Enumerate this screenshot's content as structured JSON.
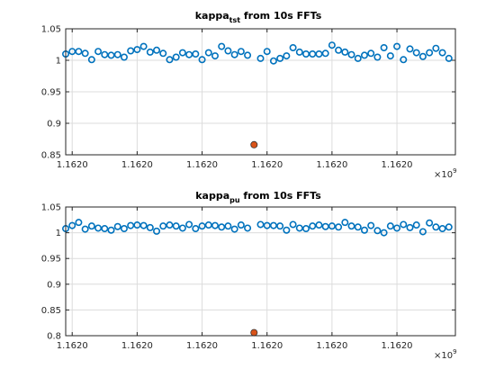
{
  "colors": {
    "series": "#0072BD",
    "outlier": "#D95319",
    "outlier_edge": "#333333"
  },
  "chart_data": [
    {
      "type": "scatter",
      "title": {
        "base": "kappa",
        "sub": "tst",
        "rest": " from 10s FFTs"
      },
      "ylim": [
        0.85,
        1.05
      ],
      "yticks": [
        0.85,
        0.9,
        0.95,
        1,
        1.05
      ],
      "ytick_labels": [
        "0.85",
        "0.9",
        "0.95",
        "1",
        "1.05"
      ],
      "xlim": [
        0,
        60
      ],
      "xticks": [
        1,
        11,
        21,
        31,
        41,
        51
      ],
      "xtick_labels": [
        "1.1620",
        "1.1620",
        "1.1620",
        "1.1620",
        "1.1620",
        "1.1620"
      ],
      "x_exponent": "×10",
      "x_exponent_power": "9",
      "grid": true,
      "series": [
        {
          "marker": "open-circle",
          "x": [
            0,
            1,
            2,
            3,
            4,
            5,
            6,
            7,
            8,
            9,
            10,
            11,
            12,
            13,
            14,
            15,
            16,
            17,
            18,
            19,
            20,
            21,
            22,
            23,
            24,
            25,
            26,
            27,
            28,
            29,
            30,
            31,
            32,
            33,
            34,
            35,
            36,
            37,
            38,
            39,
            40,
            41,
            42,
            43,
            44,
            45,
            46,
            47,
            48,
            49,
            50,
            51,
            52,
            53,
            54,
            55,
            56,
            57,
            58,
            59,
            60
          ],
          "y": [
            1.01,
            1.014,
            1.014,
            1.011,
            1.001,
            1.014,
            1.009,
            1.008,
            1.009,
            1.005,
            1.015,
            1.017,
            1.022,
            1.013,
            1.016,
            1.011,
            1.001,
            1.005,
            1.012,
            1.009,
            1.01,
            1.001,
            1.012,
            1.007,
            1.022,
            1.015,
            1.009,
            1.014,
            1.008,
            null,
            1.003,
            1.014,
            0.999,
            1.003,
            1.007,
            1.02,
            1.013,
            1.01,
            1.01,
            1.01,
            1.011,
            1.024,
            1.016,
            1.013,
            1.009,
            1.003,
            1.008,
            1.011,
            1.005,
            1.02,
            1.007,
            1.022,
            1.001,
            1.018,
            1.012,
            1.006,
            1.012,
            1.019,
            1.012,
            1.003,
            null
          ]
        },
        {
          "marker": "filled-circle",
          "x": [
            29
          ],
          "y": [
            0.866
          ]
        }
      ]
    },
    {
      "type": "scatter",
      "title": {
        "base": "kappa",
        "sub": "pu",
        "rest": " from 10s FFTs"
      },
      "ylim": [
        0.8,
        1.05
      ],
      "yticks": [
        0.8,
        0.85,
        0.9,
        0.95,
        1,
        1.05
      ],
      "ytick_labels": [
        "0.8",
        "0.85",
        "0.9",
        "0.95",
        "1",
        "1.05"
      ],
      "xlim": [
        0,
        60
      ],
      "xticks": [
        1,
        11,
        21,
        31,
        41,
        51
      ],
      "xtick_labels": [
        "1.1620",
        "1.1620",
        "1.1620",
        "1.1620",
        "1.1620",
        "1.1620"
      ],
      "x_exponent": "×10",
      "x_exponent_power": "9",
      "grid": true,
      "series": [
        {
          "marker": "open-circle",
          "x": [
            0,
            1,
            2,
            3,
            4,
            5,
            6,
            7,
            8,
            9,
            10,
            11,
            12,
            13,
            14,
            15,
            16,
            17,
            18,
            19,
            20,
            21,
            22,
            23,
            24,
            25,
            26,
            27,
            28,
            29,
            30,
            31,
            32,
            33,
            34,
            35,
            36,
            37,
            38,
            39,
            40,
            41,
            42,
            43,
            44,
            45,
            46,
            47,
            48,
            49,
            50,
            51,
            52,
            53,
            54,
            55,
            56,
            57,
            58,
            59,
            60
          ],
          "y": [
            1.008,
            1.014,
            1.02,
            1.007,
            1.013,
            1.009,
            1.008,
            1.005,
            1.012,
            1.008,
            1.014,
            1.015,
            1.014,
            1.01,
            1.003,
            1.013,
            1.015,
            1.013,
            1.009,
            1.016,
            1.008,
            1.013,
            1.015,
            1.014,
            1.011,
            1.013,
            1.007,
            1.015,
            1.009,
            null,
            1.016,
            1.014,
            1.014,
            1.013,
            1.005,
            1.016,
            1.009,
            1.008,
            1.013,
            1.015,
            1.012,
            1.013,
            1.011,
            1.02,
            1.013,
            1.011,
            1.005,
            1.014,
            1.004,
            1.0,
            1.013,
            1.009,
            1.016,
            1.01,
            1.015,
            1.002,
            1.019,
            1.011,
            1.008,
            1.011,
            null
          ]
        },
        {
          "marker": "filled-circle",
          "x": [
            29
          ],
          "y": [
            0.806
          ]
        }
      ]
    }
  ]
}
